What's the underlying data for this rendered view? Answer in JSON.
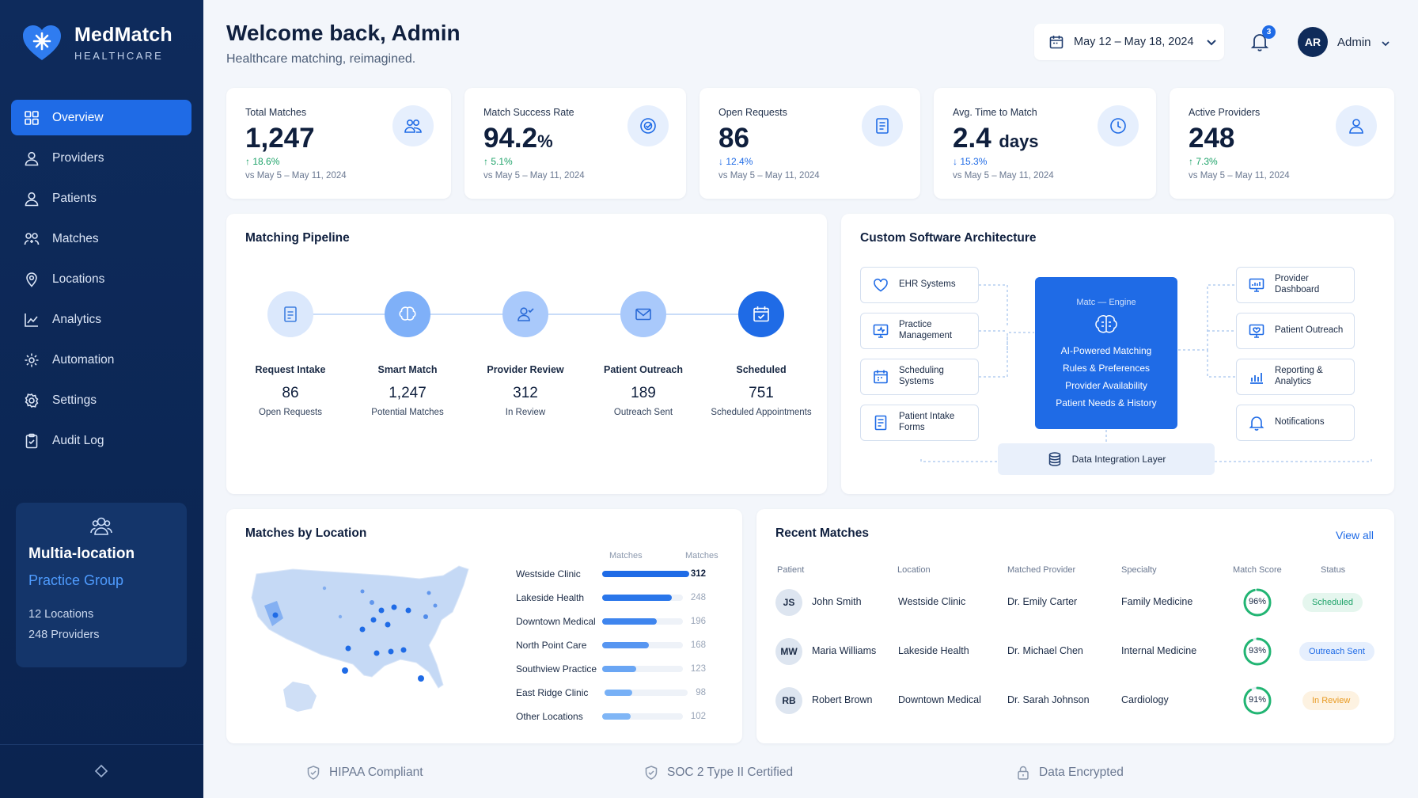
{
  "brand": {
    "name": "MedMatch",
    "sub": "HEALTHCARE"
  },
  "nav": [
    {
      "label": "Overview",
      "icon": "grid-icon",
      "active": true
    },
    {
      "label": "Providers",
      "icon": "user-icon"
    },
    {
      "label": "Patients",
      "icon": "user-icon"
    },
    {
      "label": "Matches",
      "icon": "users-link-icon"
    },
    {
      "label": "Locations",
      "icon": "map-pin-icon"
    },
    {
      "label": "Analytics",
      "icon": "chart-icon"
    },
    {
      "label": "Automation",
      "icon": "cog-icon"
    },
    {
      "label": "Settings",
      "icon": "gear-icon"
    },
    {
      "label": "Audit Log",
      "icon": "clipboard-icon"
    }
  ],
  "promo": {
    "title": "Multia-location",
    "subtitle": "Practice Group",
    "locations": "12 Locations",
    "providers": "248 Providers"
  },
  "header": {
    "title": "Welcome back, Admin",
    "subtitle": "Healthcare matching, reimagined.",
    "date_range": "May 12 – May 18, 2024",
    "notifications": "3",
    "avatar": "AR",
    "user": "Admin"
  },
  "kpis": [
    {
      "label": "Total Matches",
      "value": "1,247",
      "unit": "",
      "delta": "18.6%",
      "dir": "up",
      "period": "vs May 5 – May 11, 2024",
      "icon": "users-icon"
    },
    {
      "label": "Match Success Rate",
      "value": "94.2",
      "unit": "%",
      "delta": "5.1%",
      "dir": "up",
      "period": "vs May 5 – May 11, 2024",
      "icon": "target-check-icon"
    },
    {
      "label": "Open Requests",
      "value": "86",
      "unit": "",
      "delta": "12.4%",
      "dir": "down",
      "period": "vs May 5 – May 11, 2024",
      "icon": "document-icon"
    },
    {
      "label": "Avg. Time to Match",
      "value": "2.4",
      "unit": "days",
      "delta": "15.3%",
      "dir": "down",
      "period": "vs May 5 – May 11, 2024",
      "icon": "clock-icon"
    },
    {
      "label": "Active Providers",
      "value": "248",
      "unit": "",
      "delta": "7.3%",
      "dir": "up",
      "period": "vs May 5 – May 11, 2024",
      "icon": "user-icon"
    }
  ],
  "pipeline": {
    "title": "Matching Pipeline",
    "stages": [
      {
        "name": "Request Intake",
        "value": "86",
        "sub": "Open Requests"
      },
      {
        "name": "Smart Match",
        "value": "1,247",
        "sub": "Potential Matches"
      },
      {
        "name": "Provider Review",
        "value": "312",
        "sub": "In Review"
      },
      {
        "name": "Patient Outreach",
        "value": "189",
        "sub": "Outreach Sent"
      },
      {
        "name": "Scheduled",
        "value": "751",
        "sub": "Scheduled Appointments"
      }
    ]
  },
  "architecture": {
    "title": "Custom Software Architecture",
    "inputs": [
      "EHR Systems",
      "Practice Management",
      "Scheduling Systems",
      "Patient Intake Forms"
    ],
    "core_title": "Matc — Engine",
    "core_lines": [
      "AI-Powered Matching",
      "Rules & Preferences",
      "Provider Availability",
      "Patient Needs & History"
    ],
    "outputs": [
      "Provider Dashboard",
      "Patient Outreach",
      "Reporting & Analytics",
      "Notifications"
    ],
    "data_layer": "Data Integration Layer"
  },
  "locations": {
    "title": "Matches by Location",
    "header_left": "Matches",
    "header_right": "Matches",
    "rows": [
      {
        "name": "Westside Clinic",
        "value": 312
      },
      {
        "name": "Lakeside Health",
        "value": 248
      },
      {
        "name": "Downtown Medical",
        "value": 196
      },
      {
        "name": "North Point Care",
        "value": 168
      },
      {
        "name": "Southview Practice",
        "value": 123
      },
      {
        "name": "East Ridge Clinic",
        "value": 98
      },
      {
        "name": "Other Locations",
        "value": 102
      }
    ]
  },
  "recent": {
    "title": "Recent Matches",
    "view_all": "View all",
    "columns": [
      "Patient",
      "Location",
      "Matched Provider",
      "Specialty",
      "Match Score",
      "Status"
    ],
    "rows": [
      {
        "initials": "JS",
        "patient": "John Smith",
        "location": "Westside Clinic",
        "provider": "Dr. Emily Carter",
        "specialty": "Family Medicine",
        "score": 96,
        "score_label": "96%",
        "status": "Scheduled",
        "status_color": "#1fa36a",
        "status_bg": "#e5f6ee"
      },
      {
        "initials": "MW",
        "patient": "Maria Williams",
        "location": "Lakeside Health",
        "provider": "Dr. Michael Chen",
        "specialty": "Internal Medicine",
        "score": 93,
        "score_label": "93%",
        "status": "Outreach Sent",
        "status_color": "#1f6be6",
        "status_bg": "#e6effd"
      },
      {
        "initials": "RB",
        "patient": "Robert Brown",
        "location": "Downtown Medical",
        "provider": "Dr. Sarah Johnson",
        "specialty": "Cardiology",
        "score": 91,
        "score_label": "91%",
        "status": "In Review",
        "status_color": "#e89a22",
        "status_bg": "#fdf2e1"
      }
    ]
  },
  "trust": [
    "HIPAA Compliant",
    "SOC 2 Type II Certified",
    "Data Encrypted"
  ],
  "colors": {
    "accent": "#1f6be6",
    "sidebar": "#0e2b5c",
    "success": "#1fa36a",
    "warning": "#e89a22"
  }
}
